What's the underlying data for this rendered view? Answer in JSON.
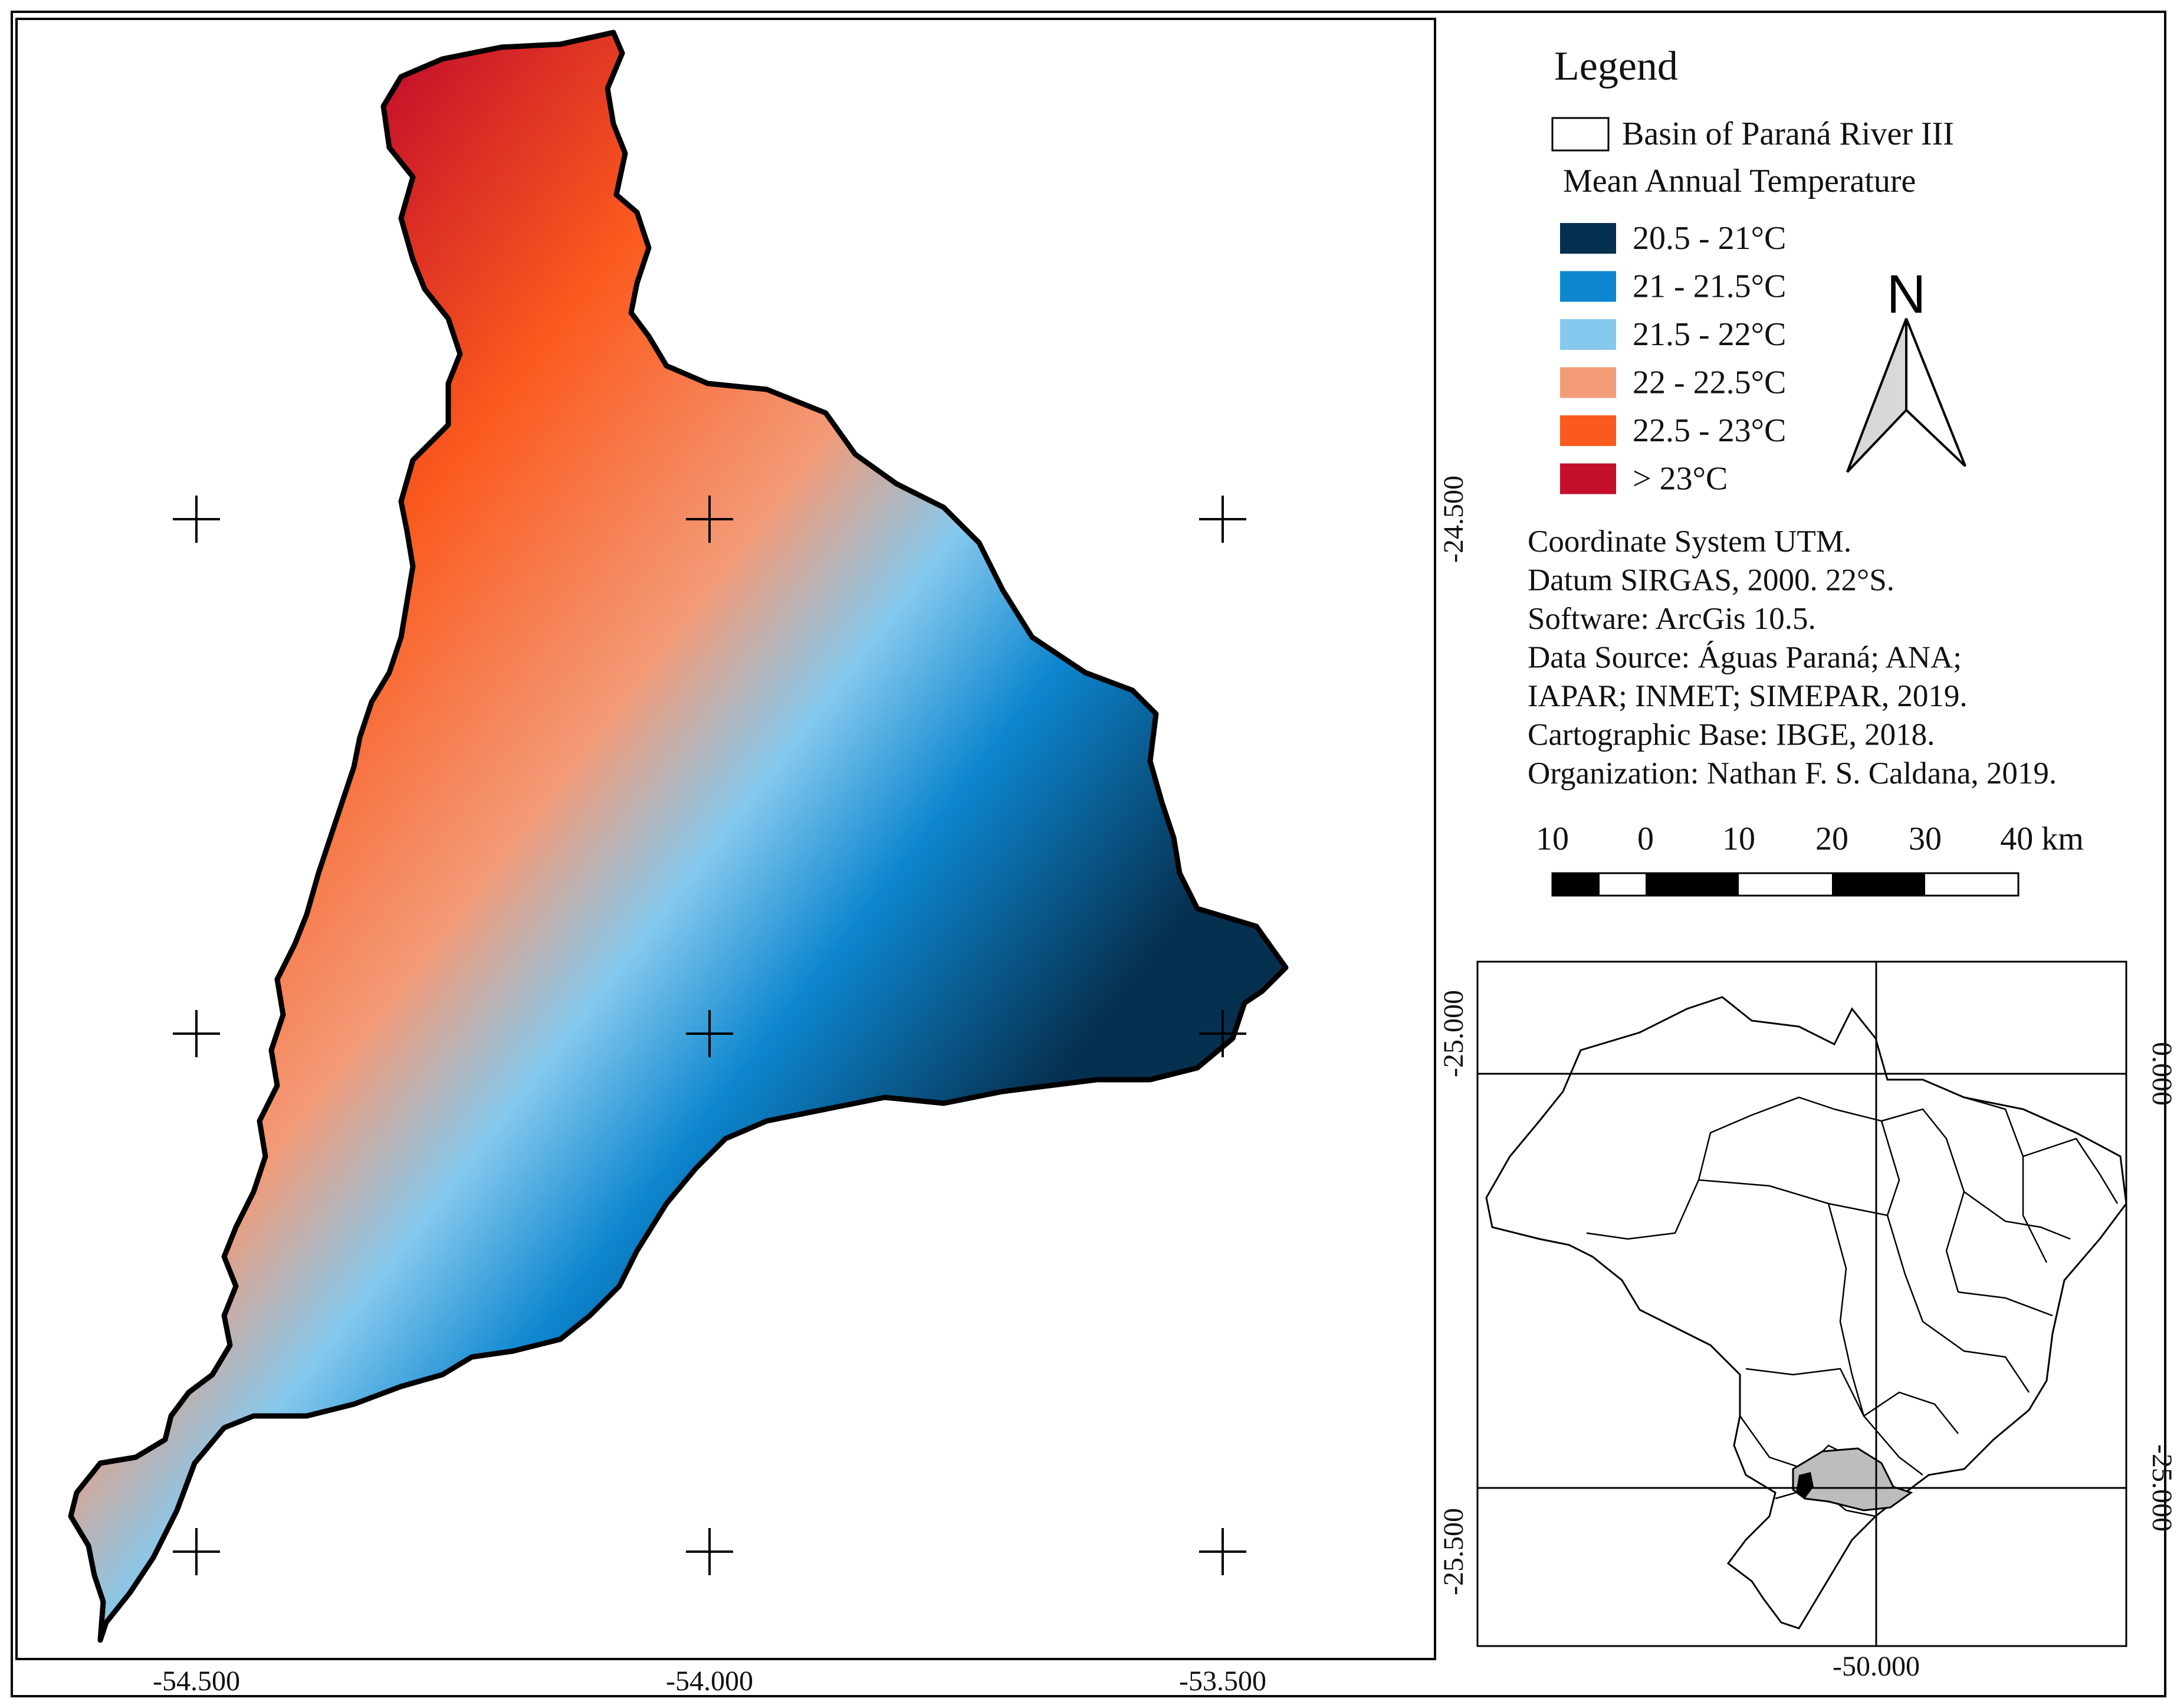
{
  "legend": {
    "title": "Legend",
    "basin_label": "Basin of Paraná River III",
    "temperature_title": "Mean Annual Temperature",
    "classes": [
      {
        "label": "20.5 - 21°C",
        "color": "#06304f"
      },
      {
        "label": "21 - 21.5°C",
        "color": "#0d86cf"
      },
      {
        "label": "21.5 - 22°C",
        "color": "#85c9ee"
      },
      {
        "label": "22 - 22.5°C",
        "color": "#f39a77"
      },
      {
        "label": "22.5 - 23°C",
        "color": "#fb5a1e"
      },
      {
        "label": "> 23°C",
        "color": "#c30f2a"
      }
    ]
  },
  "north_arrow": {
    "label": "N"
  },
  "info": {
    "lines": [
      "Coordinate System UTM.",
      "Datum SIRGAS, 2000. 22°S.",
      "Software: ArcGis 10.5.",
      "Data Source: Águas Paraná; ANA;",
      "IAPAR; INMET; SIMEPAR, 2019.",
      "Cartographic Base: IBGE, 2018.",
      "Organization: Nathan F. S. Caldana, 2019."
    ]
  },
  "scale_bar": {
    "labels": [
      "10",
      "0",
      "10",
      "20",
      "30",
      "40 km"
    ]
  },
  "main_map": {
    "x_ticks": [
      "-54.500",
      "-54.000",
      "-53.500"
    ],
    "y_tick_right": "-24.500",
    "y_ticks_left_of_inset": [
      "-25.000",
      "-25.500"
    ]
  },
  "inset_map": {
    "x_tick": "-50.000",
    "y_ticks": [
      "0.000",
      "-25.000"
    ],
    "state_fill": "#bdbdbd"
  }
}
